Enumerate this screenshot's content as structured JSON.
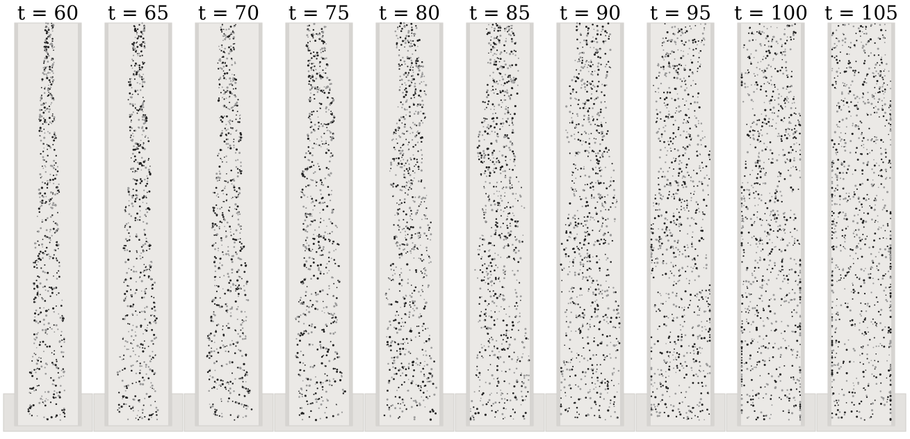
{
  "figure": {
    "panels": [
      {
        "time_label": "t = 60",
        "t": 60
      },
      {
        "time_label": "t = 65",
        "t": 65
      },
      {
        "time_label": "t = 70",
        "t": 70
      },
      {
        "time_label": "t = 75",
        "t": 75
      },
      {
        "time_label": "t = 80",
        "t": 80
      },
      {
        "time_label": "t = 85",
        "t": 85
      },
      {
        "time_label": "t = 90",
        "t": 90
      },
      {
        "time_label": "t = 95",
        "t": 95
      },
      {
        "time_label": "t = 100",
        "t": 100
      },
      {
        "time_label": "t = 105",
        "t": 105
      }
    ]
  },
  "colors": {
    "tube_fill": "#ebe9e6",
    "tube_edge": "#cfcdca",
    "particle_dark": "#222222",
    "particle_light": "#9a9a9a",
    "background": "#ffffff"
  }
}
